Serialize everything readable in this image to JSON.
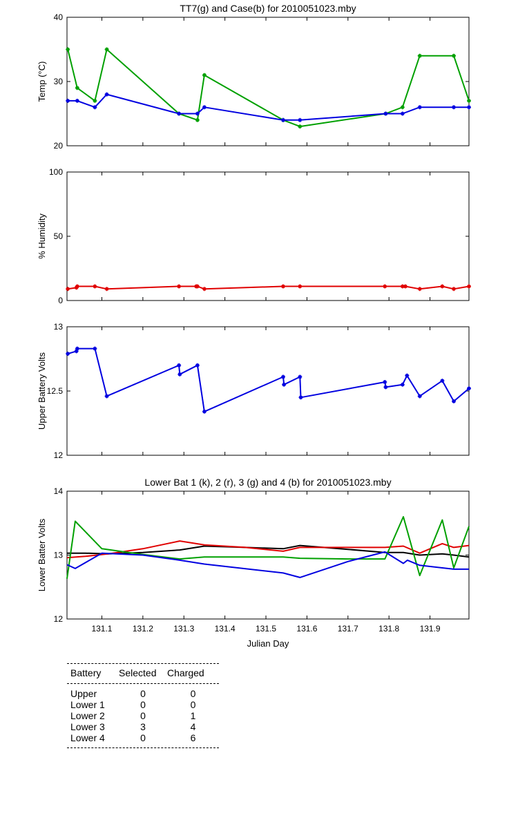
{
  "chart_data": [
    {
      "type": "line",
      "title": "TT7(g) and Case(b) for 2010051023.mby",
      "xlabel": "",
      "ylabel": "Temp (°C)",
      "ylim": [
        20,
        40
      ],
      "yticks": [
        "20",
        "30",
        "40"
      ],
      "xlim": [
        131.015,
        131.995
      ],
      "series": [
        {
          "color": "#00a000",
          "x": [
            131.017,
            131.04,
            131.083,
            131.112,
            131.288,
            131.333,
            131.35,
            131.542,
            131.583,
            131.792,
            131.833,
            131.875,
            131.958,
            131.995
          ],
          "y": [
            35,
            29,
            27,
            35,
            25,
            24,
            31,
            24,
            23,
            25,
            26,
            34,
            34,
            27
          ]
        },
        {
          "color": "#0000e0",
          "x": [
            131.017,
            131.04,
            131.083,
            131.112,
            131.288,
            131.333,
            131.35,
            131.542,
            131.583,
            131.792,
            131.833,
            131.875,
            131.958,
            131.995
          ],
          "y": [
            27,
            27,
            26,
            28,
            25,
            25,
            26,
            24,
            24,
            25,
            25,
            26,
            26,
            26
          ]
        }
      ]
    },
    {
      "type": "line",
      "title": "",
      "xlabel": "",
      "ylabel": "% Humidity",
      "ylim": [
        0,
        100
      ],
      "yticks": [
        "0",
        "50",
        "100"
      ],
      "xlim": [
        131.015,
        131.995
      ],
      "series": [
        {
          "color": "#e00000",
          "x": [
            131.017,
            131.038,
            131.04,
            131.083,
            131.112,
            131.288,
            131.33,
            131.333,
            131.35,
            131.542,
            131.583,
            131.79,
            131.833,
            131.84,
            131.875,
            131.93,
            131.958,
            131.995
          ],
          "y": [
            9,
            10,
            11,
            11,
            9,
            11,
            11,
            11,
            9,
            11,
            11,
            11,
            11,
            11,
            9,
            11,
            9,
            11
          ]
        }
      ]
    },
    {
      "type": "line",
      "title": "",
      "xlabel": "",
      "ylabel": "Upper Battery Volts",
      "ylim": [
        12,
        13
      ],
      "yticks": [
        "12",
        "12.5",
        "13"
      ],
      "xlim": [
        131.015,
        131.995
      ],
      "series": [
        {
          "color": "#0000e0",
          "x": [
            131.017,
            131.038,
            131.04,
            131.083,
            131.112,
            131.288,
            131.29,
            131.333,
            131.35,
            131.542,
            131.544,
            131.583,
            131.585,
            131.79,
            131.792,
            131.833,
            131.844,
            131.875,
            131.93,
            131.958,
            131.995
          ],
          "y": [
            12.79,
            12.81,
            12.83,
            12.83,
            12.46,
            12.7,
            12.63,
            12.7,
            12.34,
            12.61,
            12.55,
            12.61,
            12.45,
            12.57,
            12.53,
            12.55,
            12.62,
            12.46,
            12.58,
            12.42,
            12.52
          ]
        }
      ]
    },
    {
      "type": "line",
      "title": "Lower Bat 1 (k), 2 (r), 3 (g) and 4 (b) for 2010051023.mby",
      "xlabel": "Julian Day",
      "ylabel": "Lower Batter Volts",
      "ylim": [
        12,
        14
      ],
      "yticks": [
        "12",
        "13",
        "14"
      ],
      "xlim": [
        131.015,
        131.995
      ],
      "xticks": [
        "131.1",
        "131.2",
        "131.3",
        "131.4",
        "131.5",
        "131.6",
        "131.7",
        "131.8",
        "131.9"
      ],
      "series": [
        {
          "color": "#000000",
          "x": [
            131.015,
            131.06,
            131.115,
            131.2,
            131.29,
            131.35,
            131.45,
            131.542,
            131.583,
            131.7,
            131.79,
            131.835,
            131.875,
            131.93,
            131.958,
            131.995
          ],
          "y": [
            13.03,
            13.03,
            13.02,
            13.04,
            13.08,
            13.14,
            13.12,
            13.1,
            13.15,
            13.09,
            13.04,
            13.04,
            13.0,
            13.02,
            13.0,
            12.97
          ]
        },
        {
          "color": "#e00000",
          "x": [
            131.015,
            131.06,
            131.115,
            131.2,
            131.29,
            131.35,
            131.45,
            131.542,
            131.583,
            131.7,
            131.79,
            131.835,
            131.875,
            131.93,
            131.958,
            131.995
          ],
          "y": [
            12.96,
            12.98,
            13.02,
            13.1,
            13.22,
            13.16,
            13.12,
            13.06,
            13.12,
            13.12,
            13.12,
            13.14,
            13.03,
            13.18,
            13.12,
            13.15
          ]
        },
        {
          "color": "#00a000",
          "x": [
            131.015,
            131.035,
            131.1,
            131.2,
            131.29,
            131.35,
            131.542,
            131.583,
            131.7,
            131.79,
            131.835,
            131.875,
            131.93,
            131.958,
            131.995
          ],
          "y": [
            12.63,
            13.53,
            13.1,
            13.01,
            12.94,
            12.97,
            12.97,
            12.95,
            12.94,
            12.94,
            13.6,
            12.68,
            13.55,
            12.8,
            13.45
          ]
        },
        {
          "color": "#0000e0",
          "x": [
            131.015,
            131.035,
            131.1,
            131.2,
            131.29,
            131.35,
            131.542,
            131.583,
            131.7,
            131.79,
            131.835,
            131.845,
            131.875,
            131.93,
            131.958,
            131.995
          ],
          "y": [
            12.85,
            12.79,
            13.03,
            13.0,
            12.92,
            12.86,
            12.72,
            12.65,
            12.9,
            13.05,
            12.87,
            12.92,
            12.84,
            12.8,
            12.78,
            12.78
          ]
        }
      ]
    }
  ],
  "battery_table": {
    "headers": [
      "Battery",
      "Selected",
      "Charged"
    ],
    "rows": [
      [
        "Upper",
        "0",
        "0"
      ],
      [
        "Lower 1",
        "0",
        "0"
      ],
      [
        "Lower 2",
        "0",
        "1"
      ],
      [
        "Lower 3",
        "3",
        "4"
      ],
      [
        "Lower 4",
        "0",
        "6"
      ]
    ]
  }
}
